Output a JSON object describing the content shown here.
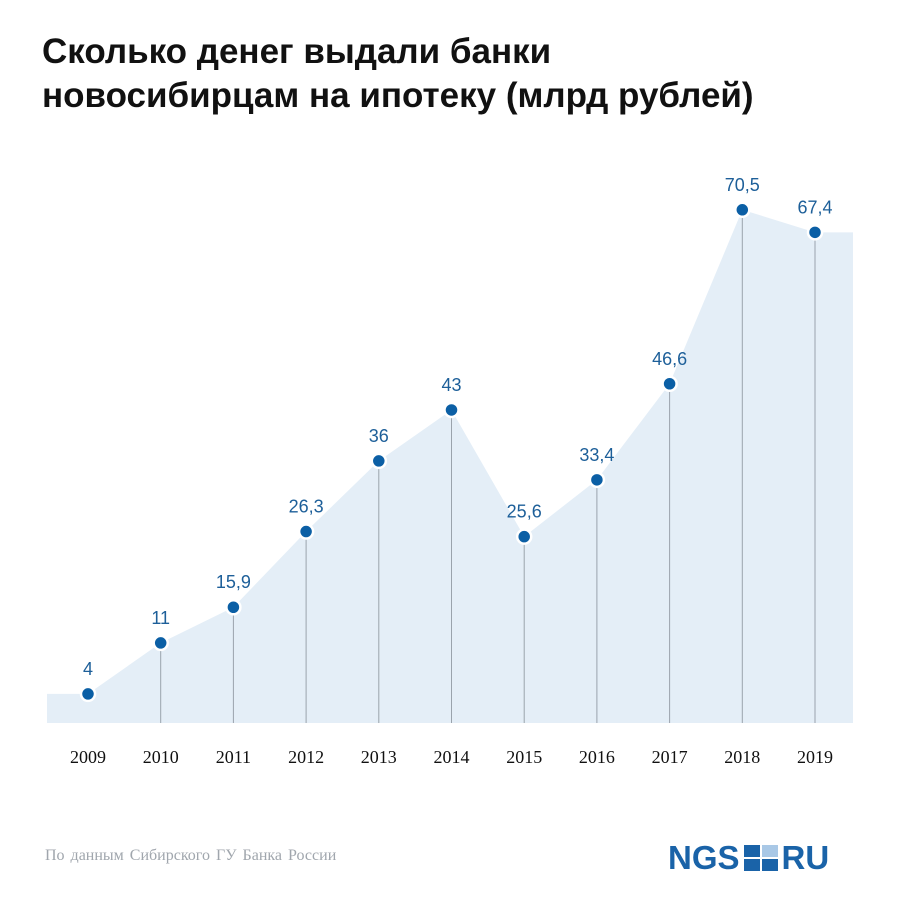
{
  "title": {
    "line1": "Сколько денег выдали банки",
    "line2": "новосибирцам на ипотеку (млрд рублей)"
  },
  "source": "По данным  Сибирского ГУ Банка России",
  "logo": {
    "left": "NGS",
    "right": "RU"
  },
  "colors": {
    "area": "#e4eef7",
    "marker": "#0b5fa5",
    "label": "#1d5f99",
    "stem": "#9aa3ac",
    "axis_text": "#111111"
  },
  "chart_data": {
    "type": "area",
    "title": "Сколько денег выдали банки новосибирцам на ипотеку (млрд рублей)",
    "categories": [
      "2009",
      "2010",
      "2011",
      "2012",
      "2013",
      "2014",
      "2015",
      "2016",
      "2017",
      "2018",
      "2019"
    ],
    "values": [
      4,
      11,
      15.9,
      26.3,
      36,
      43,
      25.6,
      33.4,
      46.6,
      70.5,
      67.4
    ],
    "labels": [
      "4",
      "11",
      "15,9",
      "26,3",
      "36",
      "43",
      "25,6",
      "33,4",
      "46,6",
      "70,5",
      "67,4"
    ],
    "xlabel": "",
    "ylabel": "млрд рублей",
    "ylim": [
      0,
      75
    ],
    "grid": false
  }
}
